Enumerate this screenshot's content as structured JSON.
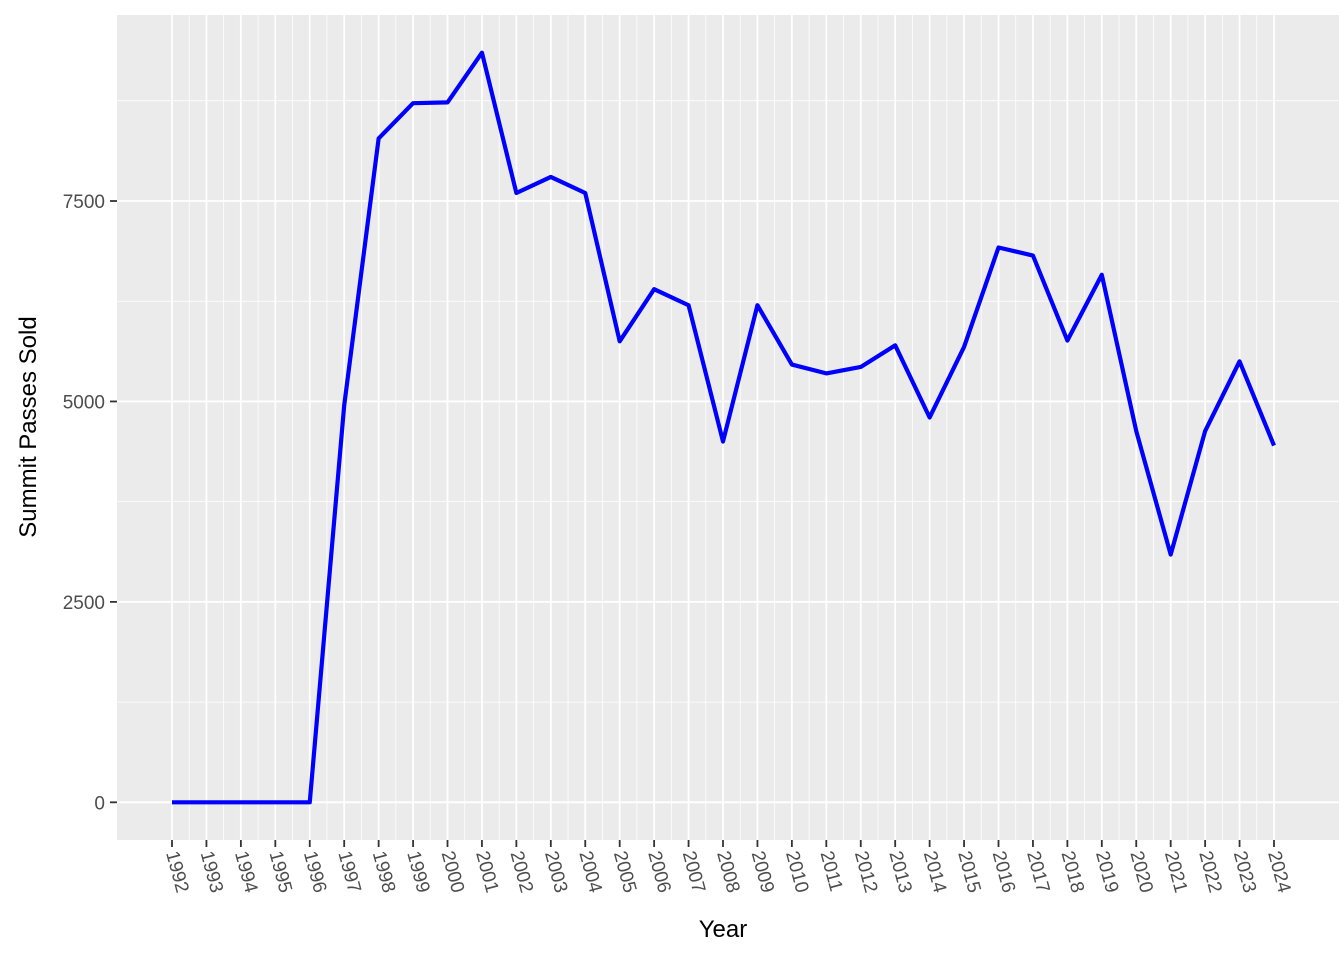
{
  "chart_data": {
    "type": "line",
    "xlabel": "Year",
    "ylabel": "Summit Passes Sold",
    "x": [
      "1992",
      "1993",
      "1994",
      "1995",
      "1996",
      "1997",
      "1998",
      "1999",
      "2000",
      "2001",
      "2002",
      "2003",
      "2004",
      "2005",
      "2006",
      "2007",
      "2008",
      "2009",
      "2010",
      "2011",
      "2012",
      "2013",
      "2014",
      "2015",
      "2016",
      "2017",
      "2018",
      "2019",
      "2020",
      "2021",
      "2022",
      "2023",
      "2024"
    ],
    "series": [
      {
        "values": [
          0,
          0,
          0,
          0,
          0,
          4950,
          8280,
          8720,
          8730,
          9350,
          7600,
          7800,
          7600,
          5750,
          6400,
          6200,
          4500,
          6200,
          5460,
          5350,
          5430,
          5700,
          4800,
          5680,
          6920,
          6820,
          5760,
          6580,
          4630,
          3090,
          4630,
          5500,
          4450
        ],
        "color": "#0000ff"
      }
    ],
    "yticks": [
      0,
      2500,
      5000,
      7500
    ],
    "ylim": [
      -470,
      9820
    ],
    "grid": true,
    "legend": "none",
    "panel_color": "#ebebeb",
    "grid_color": "#ffffff"
  }
}
